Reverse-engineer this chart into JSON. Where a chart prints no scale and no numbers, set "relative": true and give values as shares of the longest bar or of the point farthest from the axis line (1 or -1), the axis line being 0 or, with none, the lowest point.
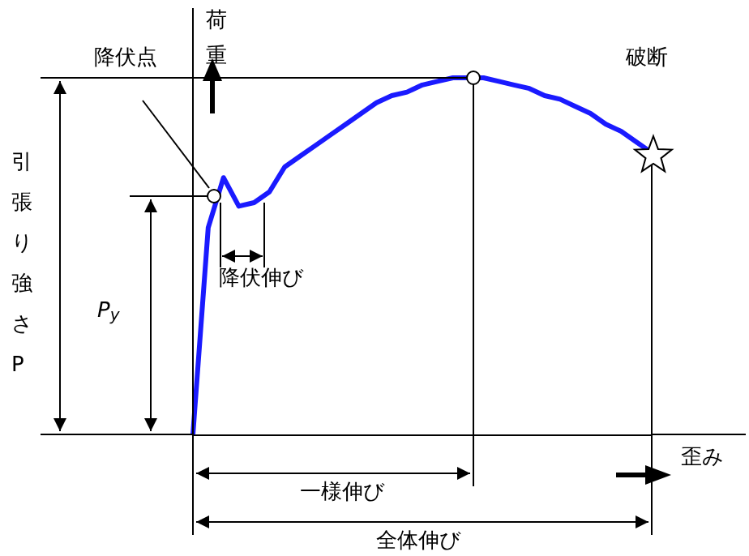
{
  "chart_data": {
    "type": "line",
    "relative": true,
    "categories": [
      null,
      null,
      null,
      null,
      null,
      null,
      null,
      null,
      null,
      null,
      null,
      null,
      null,
      null,
      null,
      null,
      null,
      null,
      null,
      null,
      null,
      null,
      null,
      null,
      null,
      null,
      null,
      null,
      null,
      null,
      null
    ],
    "values": [
      0,
      0.58,
      0.72,
      0.64,
      0.65,
      0.68,
      0.75,
      0.78,
      0.81,
      0.84,
      0.87,
      0.9,
      0.93,
      0.95,
      0.96,
      0.98,
      0.99,
      1,
      1,
      1,
      0.99,
      0.98,
      0.97,
      0.95,
      0.94,
      0.92,
      0.9,
      0.87,
      0.85,
      0.82,
      0.79
    ],
    "color": "#1a1aff",
    "ylabel": "荷重",
    "xlabel": "歪み",
    "annotations": [
      "引張り強さP",
      "降伏点",
      "P$_{y}$",
      "降伏伸び",
      "一様伸び",
      "全体伸び",
      "破断"
    ]
  }
}
